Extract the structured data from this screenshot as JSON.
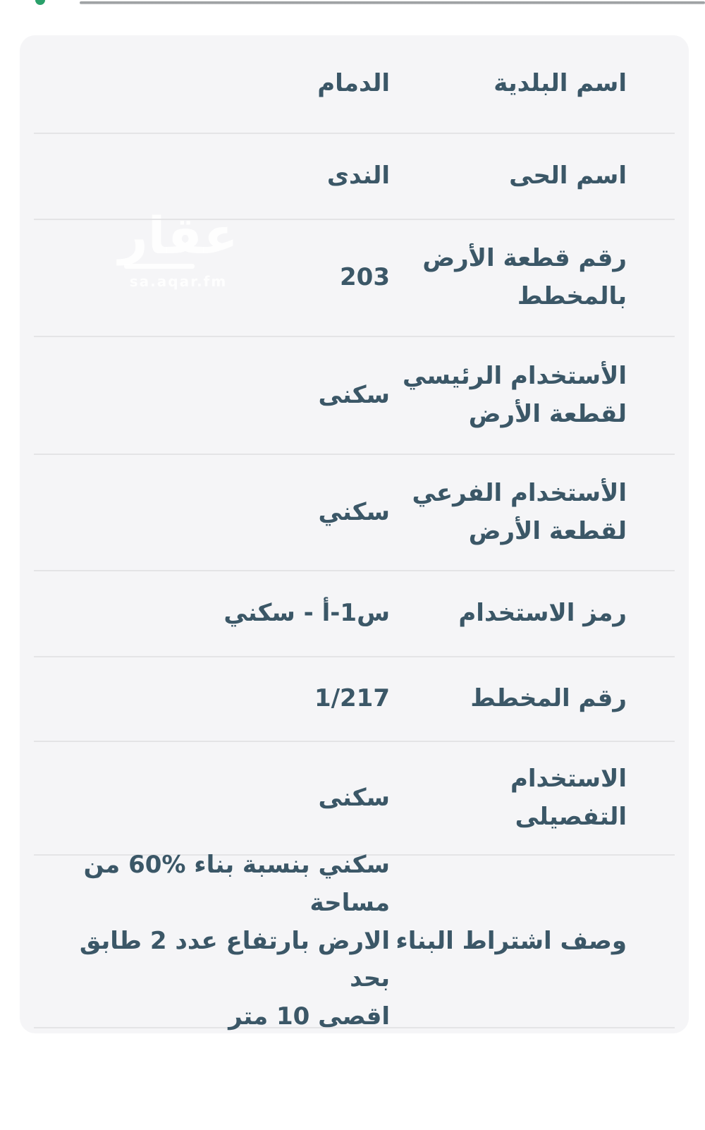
{
  "card": {
    "rows": [
      {
        "label": "اسم البلدية",
        "value": "الدمام"
      },
      {
        "label": "اسم الحى",
        "value": "الندى"
      },
      {
        "label": "رقم قطعة الأرض\nبالمخطط",
        "value": "203"
      },
      {
        "label": "الأستخدام الرئيسي\nلقطعة الأرض",
        "value": "سكنى"
      },
      {
        "label": "الأستخدام الفرعي\nلقطعة الأرض",
        "value": "سكني"
      },
      {
        "label": "رمز الاستخدام",
        "value": "س1-أ - سكني"
      },
      {
        "label": "رقم المخطط",
        "value": "1/217"
      },
      {
        "label": "الاستخدام\nالتفصيلى",
        "value": "سكنى"
      },
      {
        "label": "وصف اشتراط البناء",
        "value": "سكني بنسبة بناء %60 من مساحة\nالارض بارتفاع عدد 2 طابق بحد\nاقصى 10 متر"
      }
    ]
  },
  "watermark": {
    "text": "عقار",
    "subtext": "sa.aqar.fm"
  },
  "colors": {
    "text": "#3b5767",
    "card_background": "#f5f5f7",
    "divider": "#e4e4e6",
    "accent_green": "#2aa06a"
  }
}
